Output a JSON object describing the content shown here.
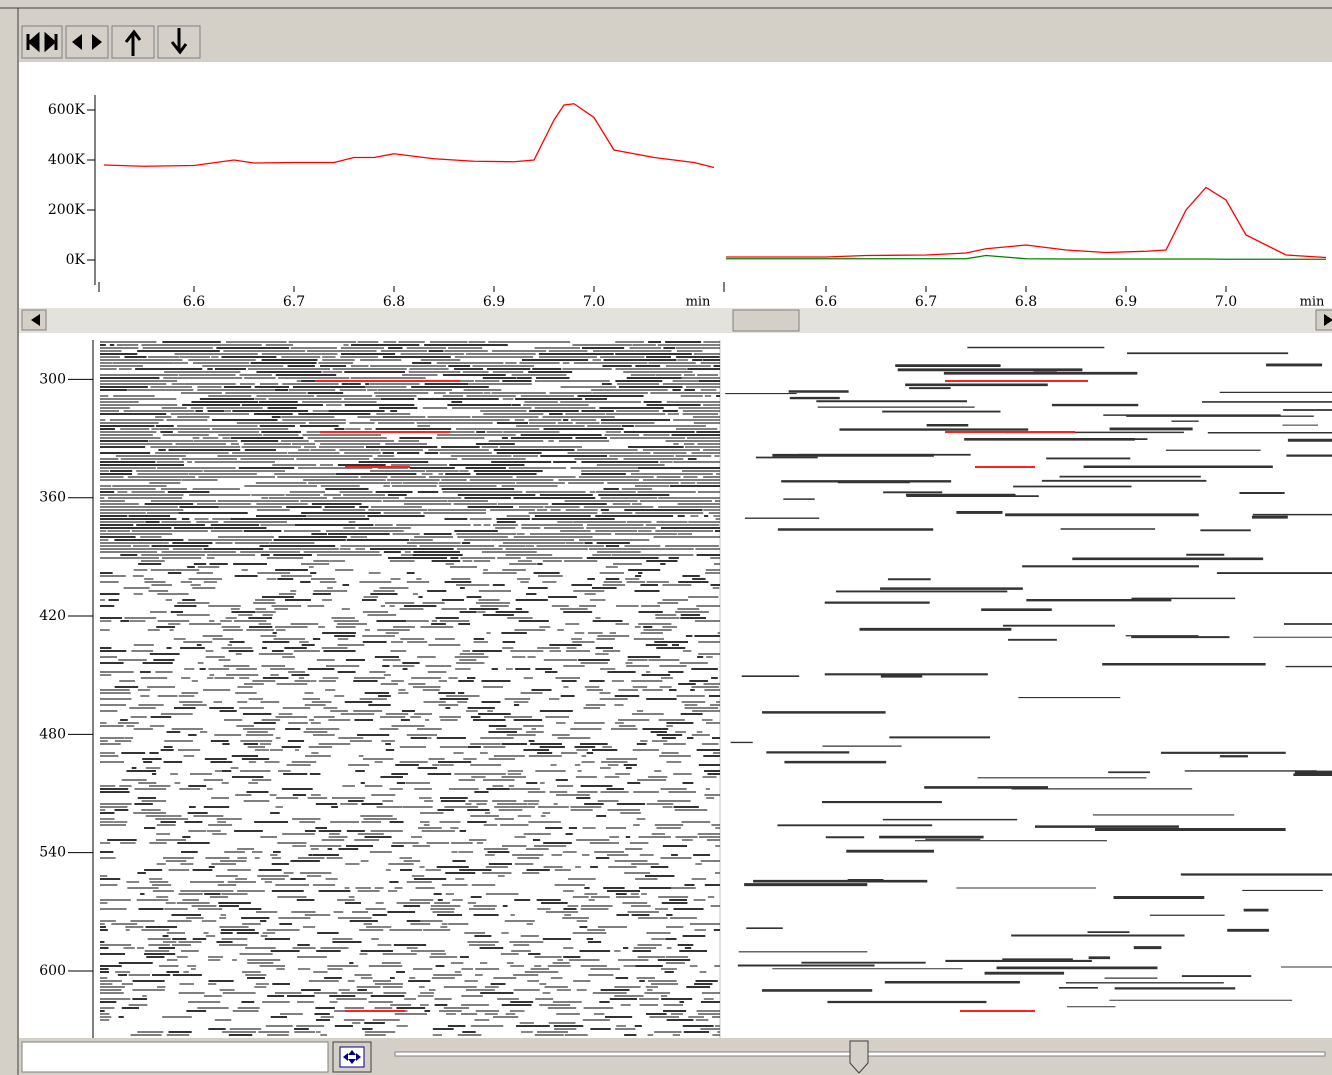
{
  "chart_data": [
    {
      "type": "line",
      "x": [
        6.51,
        6.55,
        6.6,
        6.64,
        6.66,
        6.7,
        6.74,
        6.76,
        6.78,
        6.8,
        6.84,
        6.88,
        6.92,
        6.94,
        6.96,
        6.97,
        6.98,
        7.0,
        7.02,
        7.06,
        7.1,
        7.12
      ],
      "series": [
        {
          "color": "#ff0000",
          "values": [
            380000,
            375000,
            378000,
            400000,
            388000,
            390000,
            390000,
            410000,
            410000,
            425000,
            405000,
            395000,
            393000,
            400000,
            560000,
            620000,
            625000,
            570000,
            440000,
            410000,
            390000,
            370000
          ]
        }
      ],
      "xlim": [
        6.503,
        7.124
      ],
      "xticks": [
        6.6,
        6.7,
        6.8,
        6.9,
        {
          "value": 7.0,
          "label": "7.0"
        }
      ],
      "x_label": "min",
      "ylim": [
        -100000,
        660000
      ],
      "yticks": [
        {
          "value": 600000,
          "label": "600K"
        },
        {
          "value": 400000,
          "label": "400K"
        },
        {
          "value": 200000,
          "label": "200K"
        },
        {
          "value": 0,
          "label": "0K"
        }
      ]
    },
    {
      "type": "line",
      "x": [
        6.5,
        6.6,
        6.64,
        6.7,
        6.74,
        6.76,
        6.8,
        6.84,
        6.88,
        6.92,
        6.94,
        6.96,
        6.98,
        7.0,
        7.02,
        7.06,
        7.1
      ],
      "series": [
        {
          "color": "#ff0000",
          "values": [
            12000,
            12000,
            18000,
            20000,
            28000,
            45000,
            60000,
            40000,
            30000,
            35000,
            40000,
            200000,
            290000,
            240000,
            100000,
            20000,
            10000
          ]
        },
        {
          "color": "#008000",
          "values": [
            5000,
            5000,
            5000,
            5000,
            5000,
            18000,
            5000,
            4000,
            4000,
            4000,
            4000,
            4000,
            4000,
            3000,
            3000,
            3000,
            3000
          ]
        }
      ],
      "xlim": [
        6.496,
        7.106
      ],
      "xticks": [
        6.6,
        6.7,
        6.8,
        6.9,
        {
          "value": 7.0,
          "label": "7.0"
        }
      ],
      "x_label": "min",
      "ylim": [
        -100000,
        660000
      ]
    },
    {
      "type": "heatmap",
      "ylim": [
        280,
        634
      ],
      "yticks": [
        300,
        360,
        420,
        480,
        540,
        600
      ]
    }
  ]
}
